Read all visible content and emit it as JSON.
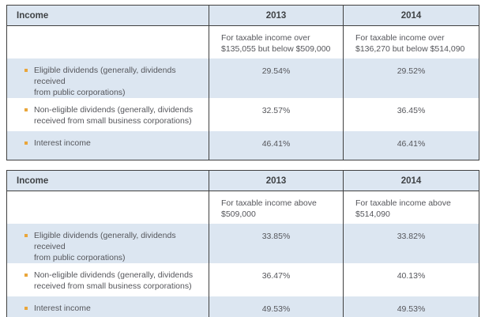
{
  "colors": {
    "header_bg": "#dce6f1",
    "stripe_bg": "#dce6f1",
    "border": "#404040",
    "bullet": "#e9a63b",
    "text": "#55565b"
  },
  "tables": [
    {
      "headers": [
        "Income",
        "2013",
        "2014"
      ],
      "range_notes": [
        "For taxable income over\n$135,055 but below $509,000",
        "For taxable income over\n$136,270 but below $514,090"
      ],
      "rows": [
        {
          "label": "Eligible dividends (generally, dividends received\nfrom public corporations)",
          "rate_2013": "29.54%",
          "rate_2014": "29.52%"
        },
        {
          "label": "Non-eligible dividends (generally, dividends\nreceived from small business corporations)",
          "rate_2013": "32.57%",
          "rate_2014": "36.45%"
        },
        {
          "label": "Interest income",
          "rate_2013": "46.41%",
          "rate_2014": "46.41%"
        }
      ]
    },
    {
      "headers": [
        "Income",
        "2013",
        "2014"
      ],
      "range_notes": [
        "For taxable income above\n$509,000",
        "For taxable income above\n$514,090"
      ],
      "rows": [
        {
          "label": "Eligible dividends (generally, dividends received\nfrom public corporations)",
          "rate_2013": "33.85%",
          "rate_2014": "33.82%"
        },
        {
          "label": "Non-eligible dividends (generally, dividends\nreceived from small business corporations)",
          "rate_2013": "36.47%",
          "rate_2014": "40.13%"
        },
        {
          "label": "Interest income",
          "rate_2013": "49.53%",
          "rate_2014": "49.53%"
        }
      ]
    }
  ]
}
